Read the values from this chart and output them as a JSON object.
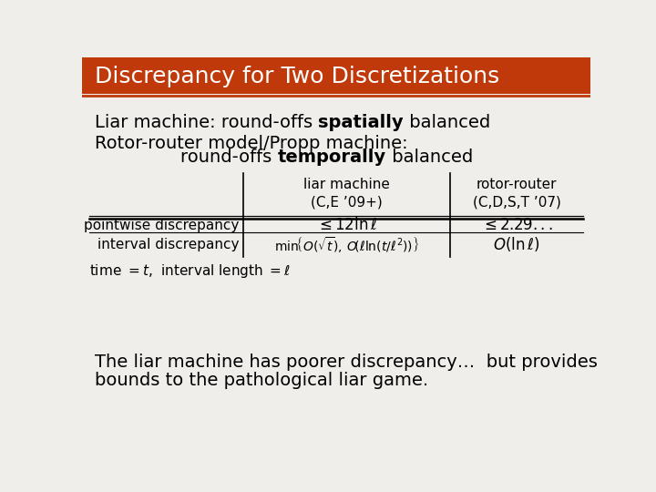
{
  "title": "Discrepancy for Two Discretizations",
  "title_bg_color": "#c0390a",
  "title_text_color": "#ffffff",
  "bg_color": "#f0eeeb",
  "bottom_line1": "The liar machine has poorer discrepancy…  but provides",
  "bottom_line2": "bounds to the pathological liar game."
}
